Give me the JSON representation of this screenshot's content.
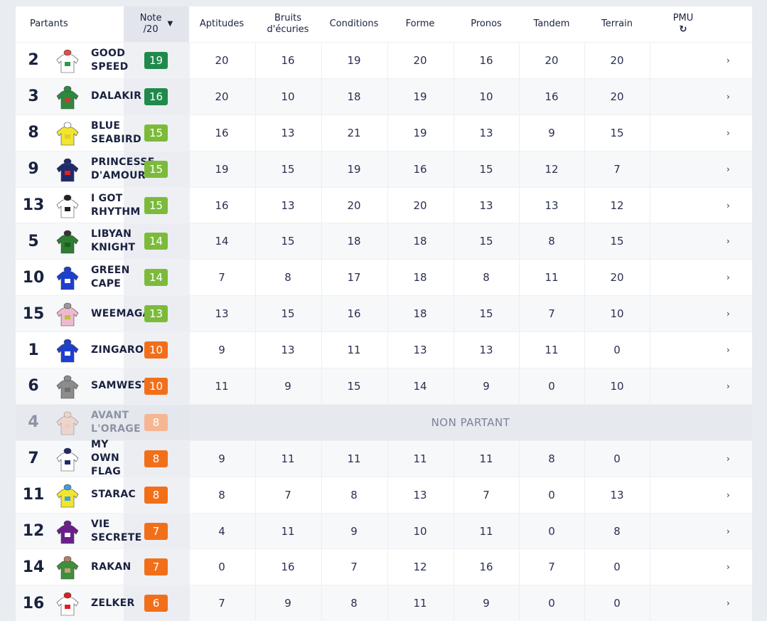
{
  "header": {
    "partants": "Partants",
    "note": "Note\n/20",
    "note_sort_icon": "caret-down-icon",
    "columns": [
      "Aptitudes",
      "Bruits\nd'écuries",
      "Conditions",
      "Forme",
      "Pronos",
      "Tandem",
      "Terrain"
    ],
    "pmu": "PMU",
    "pmu_icon": "refresh-icon"
  },
  "colors": {
    "green_dark": "#1f8a4c",
    "green_light": "#7cbb3a",
    "orange": "#f26f1a",
    "orange_faded": "#f5b693",
    "text_dark": "#1a2240"
  },
  "non_partant_label": "NON PARTANT",
  "row_arrow": "›",
  "rows": [
    {
      "num": "2",
      "name": "GOOD\nSPEED",
      "note": "19",
      "color": "#1f8a4c",
      "values": [
        "20",
        "16",
        "19",
        "20",
        "16",
        "20",
        "20"
      ],
      "silk": {
        "body": "#ffffff",
        "cap": "#e84a4a",
        "accent": "#2c9a4a"
      }
    },
    {
      "num": "3",
      "name": "DALAKIR",
      "note": "16",
      "color": "#1f8a4c",
      "values": [
        "20",
        "10",
        "18",
        "19",
        "10",
        "16",
        "20"
      ],
      "silk": {
        "body": "#2c8a3e",
        "cap": "#2c8a3e",
        "accent": "#d83333"
      }
    },
    {
      "num": "8",
      "name": "BLUE\nSEABIRD",
      "note": "15",
      "color": "#7cbb3a",
      "values": [
        "16",
        "13",
        "21",
        "19",
        "13",
        "9",
        "15"
      ],
      "silk": {
        "body": "#f2e530",
        "cap": "#ffffff",
        "accent": "#e0d020"
      }
    },
    {
      "num": "9",
      "name": "PRINCESSE\nD'AMOUR",
      "note": "15",
      "color": "#7cbb3a",
      "values": [
        "19",
        "15",
        "19",
        "16",
        "15",
        "12",
        "7"
      ],
      "silk": {
        "body": "#1f2a6e",
        "cap": "#1f2a6e",
        "accent": "#e02020"
      }
    },
    {
      "num": "13",
      "name": "I GOT\nRHYTHM",
      "note": "15",
      "color": "#7cbb3a",
      "values": [
        "16",
        "13",
        "20",
        "20",
        "13",
        "13",
        "12"
      ],
      "silk": {
        "body": "#ffffff",
        "cap": "#222222",
        "accent": "#222222"
      }
    },
    {
      "num": "5",
      "name": "LIBYAN\nKNIGHT",
      "note": "14",
      "color": "#7cbb3a",
      "values": [
        "14",
        "15",
        "18",
        "18",
        "15",
        "8",
        "15"
      ],
      "silk": {
        "body": "#2e7d32",
        "cap": "#333333",
        "accent": "#1b5e20"
      }
    },
    {
      "num": "10",
      "name": "GREEN\nCAPE",
      "note": "14",
      "color": "#7cbb3a",
      "values": [
        "7",
        "8",
        "17",
        "18",
        "8",
        "11",
        "20"
      ],
      "silk": {
        "body": "#1d3fcf",
        "cap": "#1d3fcf",
        "accent": "#ffffff"
      }
    },
    {
      "num": "15",
      "name": "WEEMAGA",
      "note": "13",
      "color": "#7cbb3a",
      "values": [
        "13",
        "15",
        "16",
        "18",
        "15",
        "7",
        "10"
      ],
      "silk": {
        "body": "#f0b8cf",
        "cap": "#9a9a9a",
        "accent": "#b8c23a"
      }
    },
    {
      "num": "1",
      "name": "ZINGARO",
      "note": "10",
      "color": "#f26f1a",
      "values": [
        "9",
        "13",
        "11",
        "13",
        "13",
        "11",
        "0"
      ],
      "silk": {
        "body": "#1d3fcf",
        "cap": "#1d3fcf",
        "accent": "#ffffff"
      }
    },
    {
      "num": "6",
      "name": "SAMWEST",
      "note": "10",
      "color": "#f26f1a",
      "values": [
        "11",
        "9",
        "15",
        "14",
        "9",
        "0",
        "10"
      ],
      "silk": {
        "body": "#8c8c8c",
        "cap": "#8c8c8c",
        "accent": "#6e6e6e"
      }
    },
    {
      "num": "4",
      "name": "AVANT\nL'ORAGE",
      "note": "8",
      "color": "#f5b693",
      "np": true,
      "values": [],
      "silk": {
        "body": "#f5c6b2",
        "cap": "#f5c6b2",
        "accent": "#f0b8a0"
      }
    },
    {
      "num": "7",
      "name": "MY\nOWN\nFLAG",
      "note": "8",
      "color": "#f26f1a",
      "values": [
        "9",
        "11",
        "11",
        "11",
        "11",
        "8",
        "0"
      ],
      "silk": {
        "body": "#ffffff",
        "cap": "#1f2a6e",
        "accent": "#1f2a6e"
      }
    },
    {
      "num": "11",
      "name": "STARAC",
      "note": "8",
      "color": "#f26f1a",
      "values": [
        "8",
        "7",
        "8",
        "13",
        "7",
        "0",
        "13"
      ],
      "silk": {
        "body": "#f2e530",
        "cap": "#3aa0e0",
        "accent": "#3aa0e0"
      }
    },
    {
      "num": "12",
      "name": "VIE\nSECRETE",
      "note": "7",
      "color": "#f26f1a",
      "values": [
        "4",
        "11",
        "9",
        "10",
        "11",
        "0",
        "8"
      ],
      "silk": {
        "body": "#6a1f8a",
        "cap": "#6a1f8a",
        "accent": "#ffffff"
      }
    },
    {
      "num": "14",
      "name": "RAKAN",
      "note": "7",
      "color": "#f26f1a",
      "values": [
        "0",
        "16",
        "7",
        "12",
        "16",
        "7",
        "0"
      ],
      "silk": {
        "body": "#3e8f3e",
        "cap": "#b08060",
        "accent": "#c8a070"
      }
    },
    {
      "num": "16",
      "name": "ZELKER",
      "note": "6",
      "color": "#f26f1a",
      "values": [
        "7",
        "9",
        "8",
        "11",
        "9",
        "0",
        "0"
      ],
      "silk": {
        "body": "#ffffff",
        "cap": "#e02020",
        "accent": "#e02020"
      }
    }
  ]
}
